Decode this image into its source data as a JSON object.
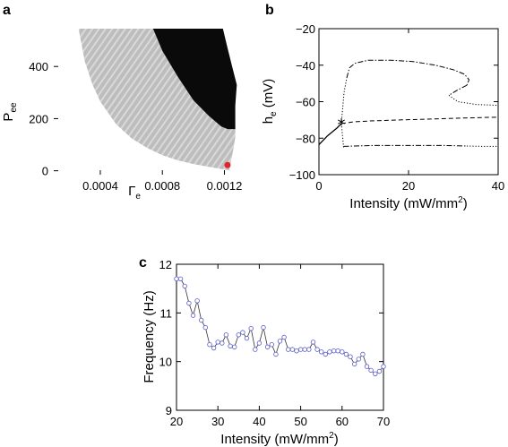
{
  "chart_data": [
    {
      "panel": "a",
      "type": "heatmap",
      "xlabel": "Γ",
      "xlabel_sub": "e",
      "ylabel": "P",
      "ylabel_sub": "ee",
      "xlim": [
        0.0001,
        0.00133
      ],
      "ylim": [
        -15,
        545
      ],
      "xticks": [
        0.0004,
        0.0008,
        0.0012
      ],
      "xtick_labels": [
        "0.0004",
        "0.0008",
        "0.0012"
      ],
      "yticks": [
        0,
        200,
        400
      ],
      "ytick_labels": [
        "0",
        "200",
        "400"
      ],
      "region_colors": {
        "gray_dark": "#a0a0a0",
        "gray_light": "#e6e6e6",
        "black": "#0a0a0a"
      },
      "gray_region": {
        "left_edge": [
          [
            0.00026,
            545
          ],
          [
            0.0003,
            420
          ],
          [
            0.00035,
            330
          ],
          [
            0.0004,
            265
          ],
          [
            0.0005,
            180
          ],
          [
            0.0006,
            125
          ],
          [
            0.0007,
            88
          ],
          [
            0.0008,
            60
          ],
          [
            0.0009,
            40
          ],
          [
            0.001,
            26
          ],
          [
            0.0011,
            15
          ],
          [
            0.0012,
            5
          ],
          [
            0.00125,
            0
          ]
        ],
        "right_edge": [
          [
            0.00123,
            0
          ],
          [
            0.00124,
            30
          ],
          [
            0.00126,
            90
          ],
          [
            0.00127,
            130
          ],
          [
            0.00127,
            170
          ]
        ]
      },
      "black_region": {
        "upper_left_edge": [
          [
            0.00074,
            545
          ],
          [
            0.0008,
            460
          ],
          [
            0.0009,
            360
          ],
          [
            0.001,
            270
          ],
          [
            0.0011,
            210
          ],
          [
            0.00118,
            170
          ],
          [
            0.00122,
            160
          ]
        ],
        "right_edge": [
          [
            0.00127,
            160
          ],
          [
            0.00127,
            250
          ],
          [
            0.00128,
            330
          ],
          [
            0.00125,
            400
          ],
          [
            0.00122,
            470
          ],
          [
            0.00119,
            545
          ]
        ],
        "top_left": [
          0.001,
          545
        ]
      },
      "marker": {
        "x": 0.00122,
        "y": 22,
        "color": "#e3242b"
      }
    },
    {
      "panel": "b",
      "type": "line",
      "xlabel": "Intensity (mW/mm",
      "xlabel_sup": "2",
      "xlabel_end": ")",
      "ylabel": "h",
      "ylabel_sub": "e",
      "ylabel_end": " (mV)",
      "xlim": [
        0,
        40
      ],
      "ylim": [
        -100,
        -20
      ],
      "xticks": [
        0,
        20,
        40
      ],
      "xtick_labels": [
        "0",
        "20",
        "40"
      ],
      "yticks": [
        -100,
        -80,
        -60,
        -40,
        -20
      ],
      "ytick_labels": [
        "−100",
        "−80",
        "−60",
        "−40",
        "−20"
      ],
      "series": [
        {
          "style": "solid",
          "points": [
            [
              0,
              -83.5
            ],
            [
              1,
              -81
            ],
            [
              2,
              -78.5
            ],
            [
              3,
              -76.5
            ],
            [
              4,
              -74.5
            ],
            [
              5,
              -72
            ]
          ]
        },
        {
          "style": "dashed",
          "points": [
            [
              5,
              -72
            ],
            [
              8,
              -71
            ],
            [
              12,
              -70.5
            ],
            [
              18,
              -70
            ],
            [
              25,
              -69.5
            ],
            [
              32,
              -69
            ],
            [
              40,
              -68.5
            ]
          ]
        },
        {
          "style": "dotted",
          "points": [
            [
              5,
              -72
            ],
            [
              5.5,
              -85
            ]
          ]
        },
        {
          "style": "dotted",
          "points": [
            [
              5,
              -72
            ],
            [
              5.6,
              -55
            ],
            [
              6.2,
              -47
            ]
          ]
        },
        {
          "style": "dashdot",
          "points": [
            [
              6.2,
              -47
            ],
            [
              6.8,
              -41.5
            ],
            [
              8,
              -39
            ],
            [
              11,
              -37.3
            ],
            [
              16,
              -37.3
            ],
            [
              21,
              -38
            ],
            [
              26,
              -40
            ],
            [
              30,
              -42.5
            ],
            [
              32.5,
              -45
            ],
            [
              33.5,
              -48
            ],
            [
              33,
              -51
            ]
          ]
        },
        {
          "style": "dashdot",
          "points": [
            [
              33,
              -51
            ],
            [
              31,
              -53.5
            ],
            [
              29,
              -56.5
            ]
          ]
        },
        {
          "style": "dotted",
          "points": [
            [
              29,
              -56.5
            ],
            [
              31,
              -60
            ],
            [
              35,
              -61.5
            ],
            [
              40,
              -62
            ]
          ]
        },
        {
          "style": "dashdot",
          "points": [
            [
              5.5,
              -84.5
            ],
            [
              12,
              -84
            ],
            [
              20,
              -84
            ],
            [
              28,
              -84
            ],
            [
              33,
              -84.3
            ]
          ]
        },
        {
          "style": "dotted",
          "points": [
            [
              33,
              -84.3
            ],
            [
              37,
              -84.5
            ],
            [
              40,
              -84.5
            ]
          ]
        }
      ],
      "marker": {
        "x": 5,
        "y": -72,
        "symbol": "*"
      }
    },
    {
      "panel": "c",
      "type": "line",
      "xlabel": "Intensity (mW/mm",
      "xlabel_sup": "2",
      "xlabel_end": ")",
      "ylabel": "Frequency (Hz)",
      "xlim": [
        20,
        70
      ],
      "ylim": [
        9,
        12
      ],
      "xticks": [
        20,
        30,
        40,
        50,
        60,
        70
      ],
      "xtick_labels": [
        "20",
        "30",
        "40",
        "50",
        "60",
        "70"
      ],
      "yticks": [
        9,
        10,
        11,
        12
      ],
      "ytick_labels": [
        "9",
        "10",
        "11",
        "12"
      ],
      "marker_color": "#5a5ac8",
      "x": [
        20,
        21,
        22,
        23,
        24,
        25,
        26,
        27,
        28,
        29,
        30,
        31,
        32,
        33,
        34,
        35,
        36,
        37,
        38,
        39,
        40,
        41,
        42,
        43,
        44,
        45,
        46,
        47,
        48,
        49,
        50,
        51,
        52,
        53,
        54,
        55,
        56,
        57,
        58,
        59,
        60,
        61,
        62,
        63,
        64,
        65,
        66,
        67,
        68,
        69,
        70
      ],
      "values": [
        11.7,
        11.7,
        11.55,
        11.2,
        10.95,
        11.25,
        10.85,
        10.7,
        10.35,
        10.28,
        10.4,
        10.38,
        10.55,
        10.32,
        10.3,
        10.55,
        10.6,
        10.48,
        10.68,
        10.25,
        10.38,
        10.7,
        10.3,
        10.35,
        10.15,
        10.42,
        10.5,
        10.25,
        10.25,
        10.22,
        10.25,
        10.25,
        10.25,
        10.4,
        10.25,
        10.2,
        10.15,
        10.2,
        10.22,
        10.22,
        10.2,
        10.15,
        10.1,
        9.95,
        10.05,
        10.15,
        9.9,
        9.82,
        9.75,
        9.8,
        9.9
      ]
    }
  ]
}
